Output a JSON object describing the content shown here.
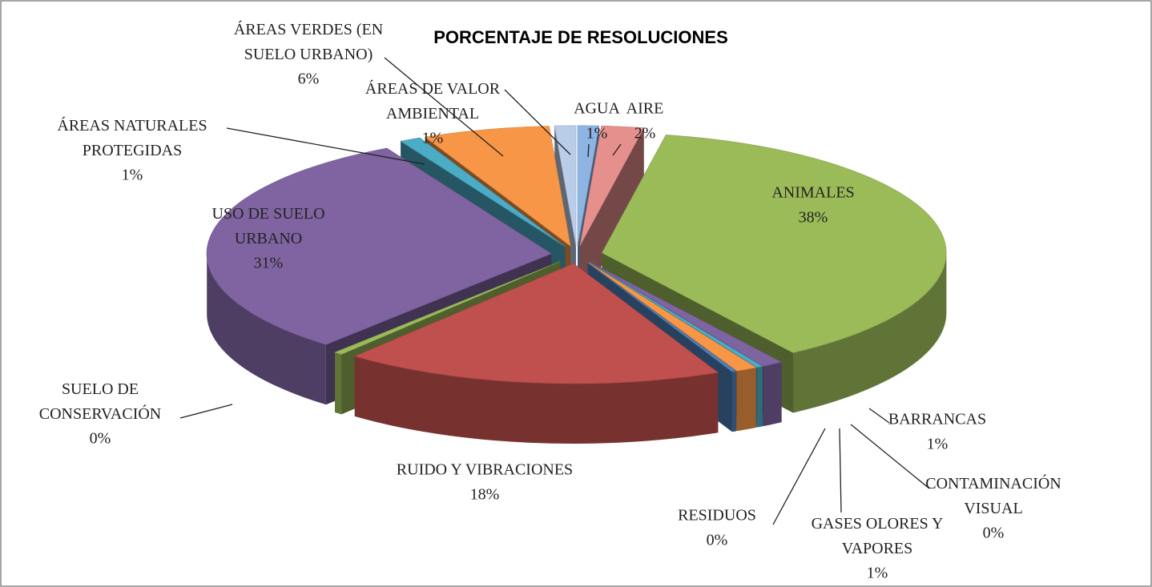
{
  "chart_data": {
    "type": "pie3d",
    "title": "PORCENTAJE DE RESOLUCIONES",
    "categories": [
      "AGUA",
      "AIRE",
      "ANIMALES",
      "BARRANCAS",
      "CONTAMINACIÓN\nVISUAL",
      "GASES OLORES Y\nVAPORES",
      "RESIDUOS",
      "RUIDO Y VIBRACIONES",
      "SUELO DE\nCONSERVACIÓN",
      "USO DE SUELO\nURBANO",
      "ÁREAS NATURALES\nPROTEGIDAS",
      "ÁREAS VERDES (EN\nSUELO URBANO)",
      "ÁREAS DE VALOR\nAMBIENTAL"
    ],
    "values": [
      1,
      2,
      38,
      1,
      0.3,
      1,
      0.2,
      18,
      0.4,
      31,
      1,
      6,
      1
    ],
    "value_labels": [
      "1%",
      "2%",
      "38%",
      "1%",
      "0%",
      "1%",
      "0%",
      "18%",
      "0%",
      "31%",
      "1%",
      "6%",
      "1%"
    ],
    "colors": [
      "#8eb4e3",
      "#e6908e",
      "#9bbb59",
      "#7f64a2",
      "#4bacc6",
      "#f79646",
      "#4f81bd",
      "#c0504d",
      "#9bbb59",
      "#8064a2",
      "#4bacc6",
      "#f79646",
      "#b9cde8"
    ]
  }
}
